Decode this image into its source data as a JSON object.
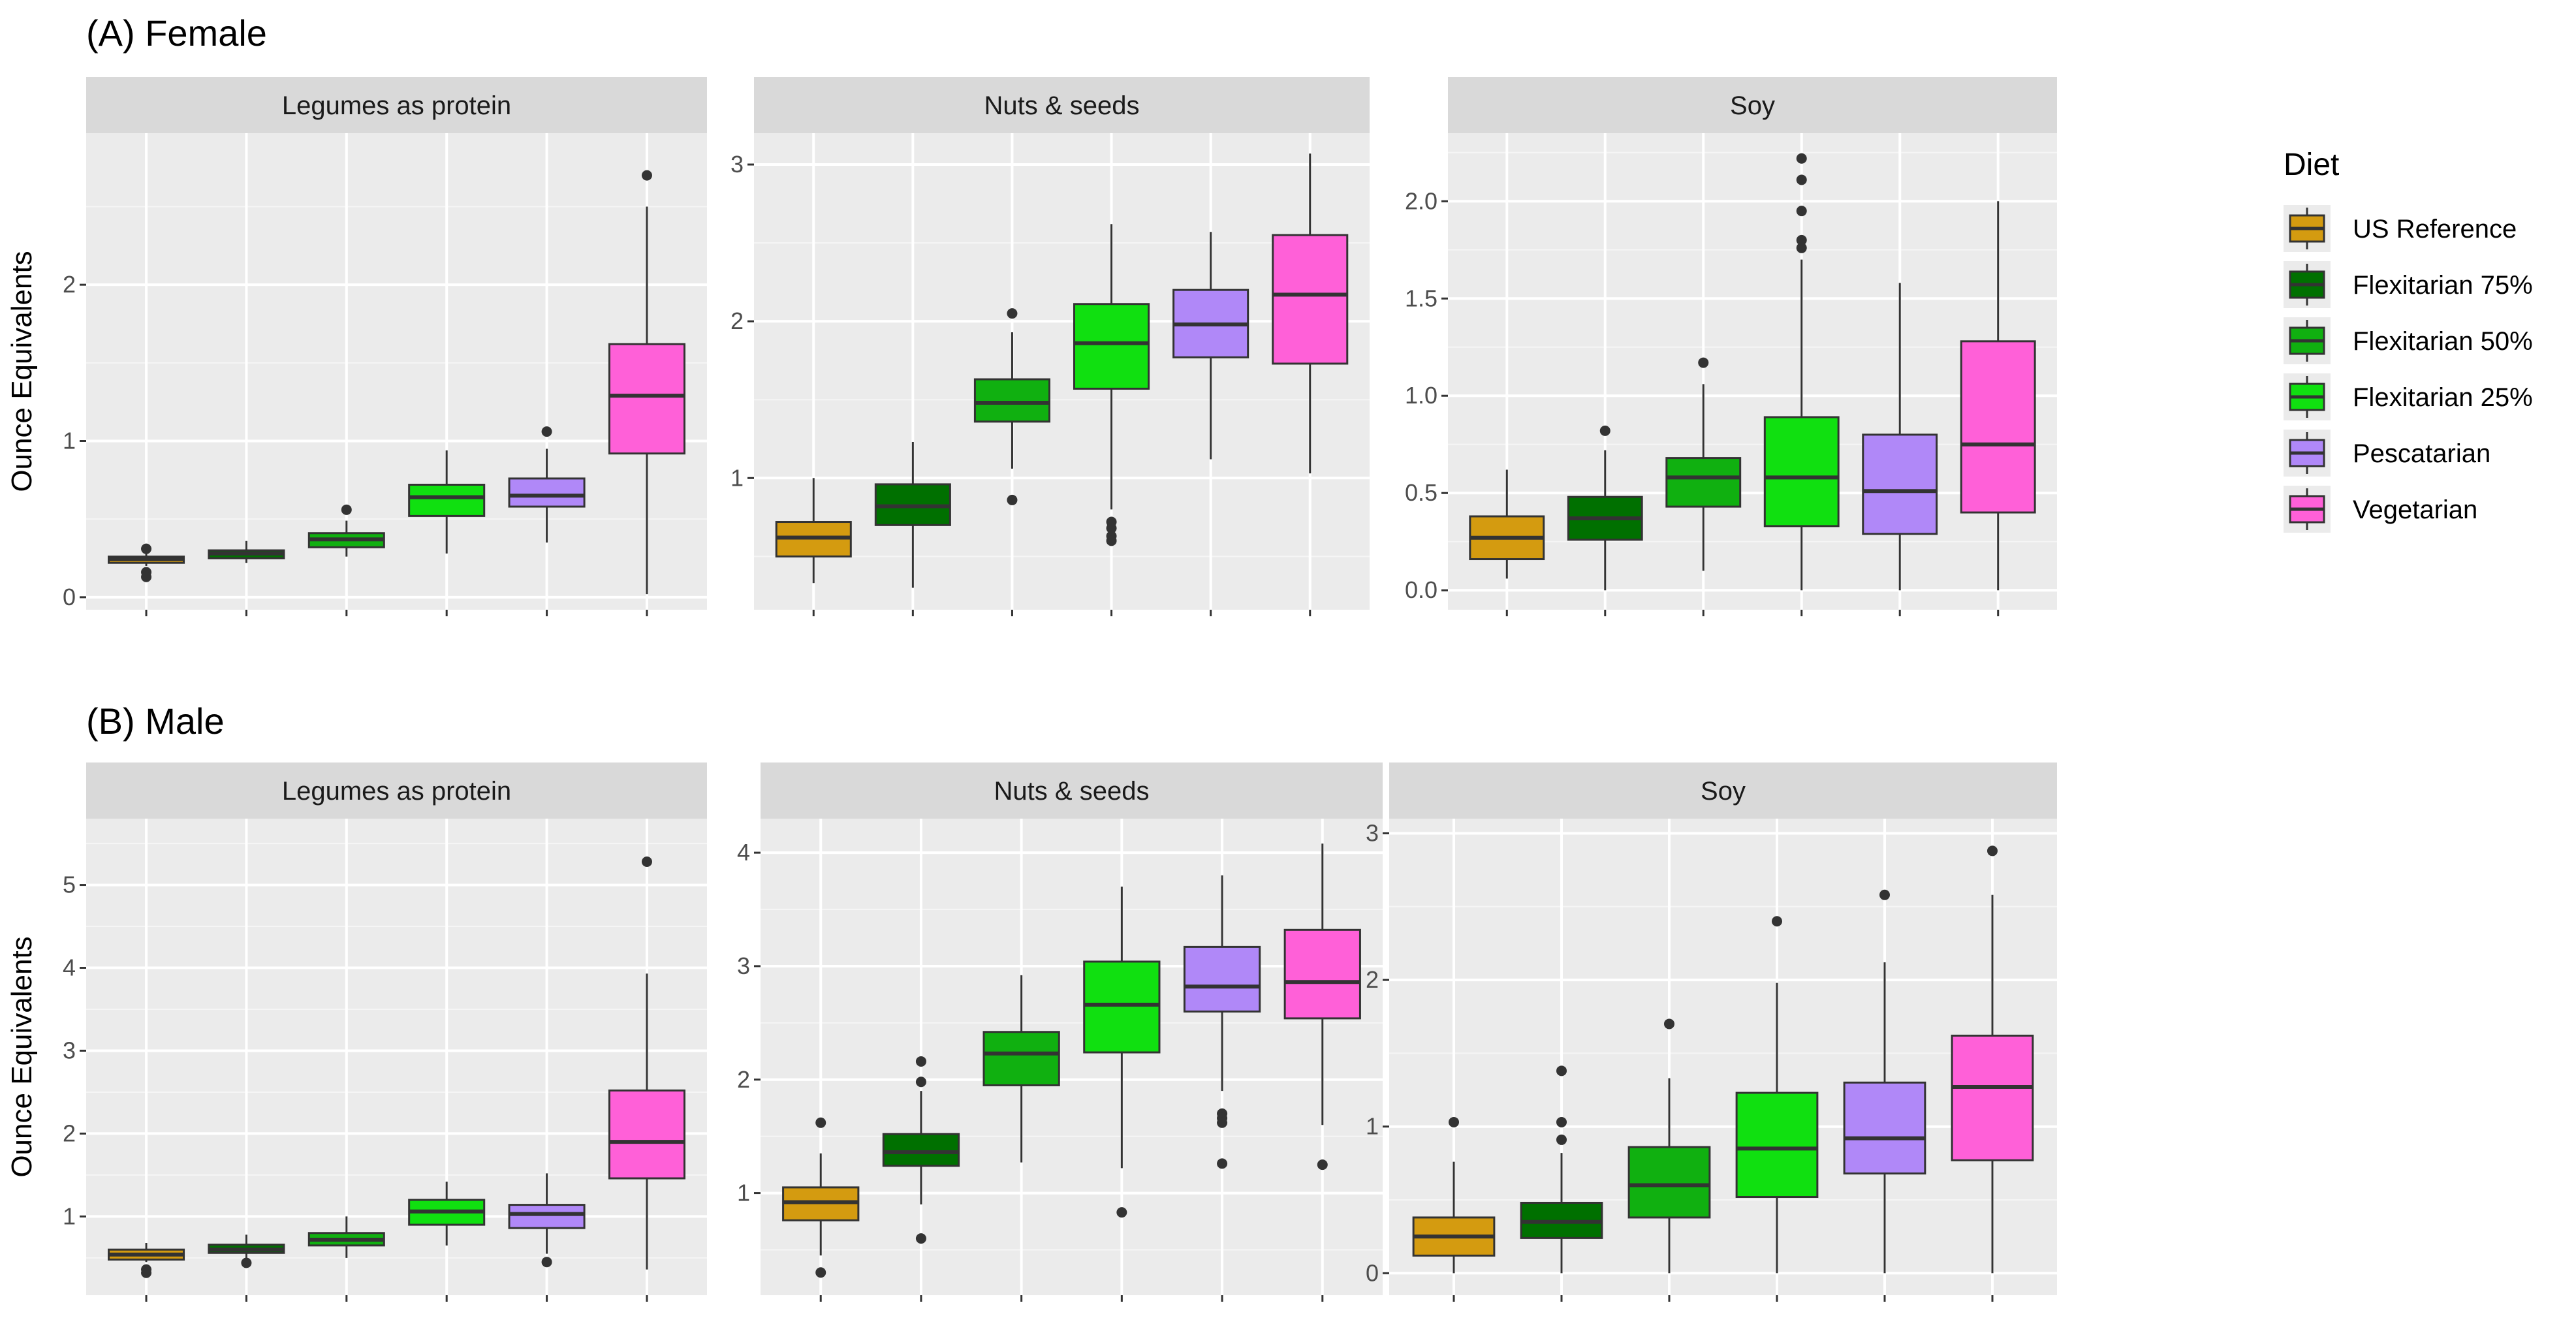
{
  "chart_data": {
    "type": "boxplot",
    "legend": {
      "title": "Diet",
      "entries": [
        {
          "label": "US Reference",
          "color": "#D49B10"
        },
        {
          "label": "Flexitarian 75%",
          "color": "#007000"
        },
        {
          "label": "Flexitarian 50%",
          "color": "#10B010"
        },
        {
          "label": "Flexitarian 25%",
          "color": "#10E010"
        },
        {
          "label": "Pescatarian",
          "color": "#B088F8"
        },
        {
          "label": "Vegetarian",
          "color": "#FF60D8"
        }
      ],
      "placement": "right"
    },
    "rows": [
      {
        "title": "(A) Female",
        "ylabel": "Ounce Equivalents",
        "panels": [
          {
            "strip": "Legumes as protein",
            "ylim": [
              -0.08,
              2.97
            ],
            "yticks": [
              0,
              1,
              2
            ],
            "tick_labels": [
              "0",
              "1",
              "2"
            ],
            "boxes": [
              {
                "q1": 0.22,
                "median": 0.245,
                "q3": 0.26,
                "whisker_low": 0.2,
                "whisker_high": 0.28,
                "outliers": [
                  0.31,
                  0.16,
                  0.13
                ]
              },
              {
                "q1": 0.25,
                "median": 0.28,
                "q3": 0.3,
                "whisker_low": 0.22,
                "whisker_high": 0.36,
                "outliers": []
              },
              {
                "q1": 0.32,
                "median": 0.37,
                "q3": 0.41,
                "whisker_low": 0.26,
                "whisker_high": 0.49,
                "outliers": [
                  0.56
                ]
              },
              {
                "q1": 0.52,
                "median": 0.64,
                "q3": 0.72,
                "whisker_low": 0.28,
                "whisker_high": 0.94,
                "outliers": []
              },
              {
                "q1": 0.58,
                "median": 0.65,
                "q3": 0.76,
                "whisker_low": 0.35,
                "whisker_high": 0.95,
                "outliers": [
                  1.06
                ]
              },
              {
                "q1": 0.92,
                "median": 1.29,
                "q3": 1.62,
                "whisker_low": 0.02,
                "whisker_high": 2.5,
                "outliers": [
                  2.7
                ]
              }
            ]
          },
          {
            "strip": "Nuts & seeds",
            "ylim": [
              0.16,
              3.2
            ],
            "yticks": [
              1,
              2,
              3
            ],
            "tick_labels": [
              "1",
              "2",
              "3"
            ],
            "boxes": [
              {
                "q1": 0.5,
                "median": 0.62,
                "q3": 0.72,
                "whisker_low": 0.33,
                "whisker_high": 1.0,
                "outliers": []
              },
              {
                "q1": 0.7,
                "median": 0.82,
                "q3": 0.96,
                "whisker_low": 0.3,
                "whisker_high": 1.23,
                "outliers": []
              },
              {
                "q1": 1.36,
                "median": 1.48,
                "q3": 1.63,
                "whisker_low": 1.06,
                "whisker_high": 1.93,
                "outliers": [
                  2.05,
                  0.86
                ]
              },
              {
                "q1": 1.57,
                "median": 1.86,
                "q3": 2.11,
                "whisker_low": 0.8,
                "whisker_high": 2.62,
                "outliers": [
                  0.72,
                  0.68,
                  0.63,
                  0.6
                ]
              },
              {
                "q1": 1.77,
                "median": 1.98,
                "q3": 2.2,
                "whisker_low": 1.12,
                "whisker_high": 2.57,
                "outliers": []
              },
              {
                "q1": 1.73,
                "median": 2.17,
                "q3": 2.55,
                "whisker_low": 1.03,
                "whisker_high": 3.07,
                "outliers": []
              }
            ]
          },
          {
            "strip": "Soy",
            "ylim": [
              -0.1,
              2.35
            ],
            "yticks": [
              0.0,
              0.5,
              1.0,
              1.5,
              2.0
            ],
            "tick_labels": [
              "0.0",
              "0.5",
              "1.0",
              "1.5",
              "2.0"
            ],
            "boxes": [
              {
                "q1": 0.16,
                "median": 0.27,
                "q3": 0.38,
                "whisker_low": 0.06,
                "whisker_high": 0.62,
                "outliers": []
              },
              {
                "q1": 0.26,
                "median": 0.37,
                "q3": 0.48,
                "whisker_low": 0.0,
                "whisker_high": 0.72,
                "outliers": [
                  0.82
                ]
              },
              {
                "q1": 0.43,
                "median": 0.58,
                "q3": 0.68,
                "whisker_low": 0.1,
                "whisker_high": 1.06,
                "outliers": [
                  1.17
                ]
              },
              {
                "q1": 0.33,
                "median": 0.58,
                "q3": 0.89,
                "whisker_low": 0.0,
                "whisker_high": 1.7,
                "outliers": [
                  1.76,
                  1.8,
                  1.95,
                  2.11,
                  2.22
                ]
              },
              {
                "q1": 0.29,
                "median": 0.51,
                "q3": 0.8,
                "whisker_low": 0.0,
                "whisker_high": 1.58,
                "outliers": []
              },
              {
                "q1": 0.4,
                "median": 0.75,
                "q3": 1.28,
                "whisker_low": 0.0,
                "whisker_high": 2.0,
                "outliers": []
              }
            ]
          }
        ]
      },
      {
        "title": "(B) Male",
        "ylabel": "Ounce Equivalents",
        "panels": [
          {
            "strip": "Legumes as protein",
            "ylim": [
              0.05,
              5.8
            ],
            "yticks": [
              1,
              2,
              3,
              4,
              5
            ],
            "tick_labels": [
              "1",
              "2",
              "3",
              "4",
              "5"
            ],
            "boxes": [
              {
                "q1": 0.48,
                "median": 0.54,
                "q3": 0.6,
                "whisker_low": 0.45,
                "whisker_high": 0.68,
                "outliers": [
                  0.36,
                  0.32
                ]
              },
              {
                "q1": 0.56,
                "median": 0.6,
                "q3": 0.66,
                "whisker_low": 0.5,
                "whisker_high": 0.78,
                "outliers": [
                  0.44
                ]
              },
              {
                "q1": 0.65,
                "median": 0.72,
                "q3": 0.8,
                "whisker_low": 0.5,
                "whisker_high": 1.0,
                "outliers": []
              },
              {
                "q1": 0.9,
                "median": 1.06,
                "q3": 1.2,
                "whisker_low": 0.65,
                "whisker_high": 1.42,
                "outliers": []
              },
              {
                "q1": 0.86,
                "median": 1.03,
                "q3": 1.14,
                "whisker_low": 0.55,
                "whisker_high": 1.52,
                "outliers": [
                  0.45
                ]
              },
              {
                "q1": 1.46,
                "median": 1.9,
                "q3": 2.52,
                "whisker_low": 0.36,
                "whisker_high": 3.93,
                "outliers": [
                  5.28
                ]
              }
            ]
          },
          {
            "strip": "Nuts & seeds",
            "ylim": [
              0.1,
              4.3
            ],
            "yticks": [
              1,
              2,
              3,
              4
            ],
            "tick_labels": [
              "1",
              "2",
              "3",
              "4"
            ],
            "boxes": [
              {
                "q1": 0.76,
                "median": 0.92,
                "q3": 1.05,
                "whisker_low": 0.45,
                "whisker_high": 1.35,
                "outliers": [
                  1.62,
                  0.3
                ]
              },
              {
                "q1": 1.24,
                "median": 1.36,
                "q3": 1.52,
                "whisker_low": 0.9,
                "whisker_high": 1.9,
                "outliers": [
                  1.98,
                  2.16,
                  0.6
                ]
              },
              {
                "q1": 1.95,
                "median": 2.23,
                "q3": 2.42,
                "whisker_low": 1.27,
                "whisker_high": 2.92,
                "outliers": []
              },
              {
                "q1": 2.24,
                "median": 2.66,
                "q3": 3.04,
                "whisker_low": 1.22,
                "whisker_high": 3.7,
                "outliers": [
                  0.83
                ]
              },
              {
                "q1": 2.6,
                "median": 2.82,
                "q3": 3.17,
                "whisker_low": 1.9,
                "whisker_high": 3.8,
                "outliers": [
                  1.7,
                  1.66,
                  1.62,
                  1.26
                ]
              },
              {
                "q1": 2.54,
                "median": 2.86,
                "q3": 3.32,
                "whisker_low": 1.6,
                "whisker_high": 4.08,
                "outliers": [
                  1.25
                ]
              }
            ]
          },
          {
            "strip": "Soy",
            "ylim": [
              -0.15,
              3.1
            ],
            "yticks": [
              0,
              1,
              2,
              3
            ],
            "tick_labels": [
              "0",
              "1",
              "2",
              "3"
            ],
            "boxes": [
              {
                "q1": 0.12,
                "median": 0.25,
                "q3": 0.38,
                "whisker_low": 0.0,
                "whisker_high": 0.76,
                "outliers": [
                  1.03
                ]
              },
              {
                "q1": 0.24,
                "median": 0.35,
                "q3": 0.48,
                "whisker_low": 0.0,
                "whisker_high": 0.82,
                "outliers": [
                  0.91,
                  1.03,
                  1.38
                ]
              },
              {
                "q1": 0.38,
                "median": 0.6,
                "q3": 0.86,
                "whisker_low": 0.0,
                "whisker_high": 1.33,
                "outliers": [
                  1.7
                ]
              },
              {
                "q1": 0.52,
                "median": 0.85,
                "q3": 1.23,
                "whisker_low": 0.0,
                "whisker_high": 1.98,
                "outliers": [
                  2.4
                ]
              },
              {
                "q1": 0.68,
                "median": 0.92,
                "q3": 1.3,
                "whisker_low": 0.0,
                "whisker_high": 2.12,
                "outliers": [
                  2.58
                ]
              },
              {
                "q1": 0.77,
                "median": 1.27,
                "q3": 1.62,
                "whisker_low": 0.0,
                "whisker_high": 2.58,
                "outliers": [
                  2.88
                ]
              }
            ]
          }
        ]
      }
    ]
  }
}
